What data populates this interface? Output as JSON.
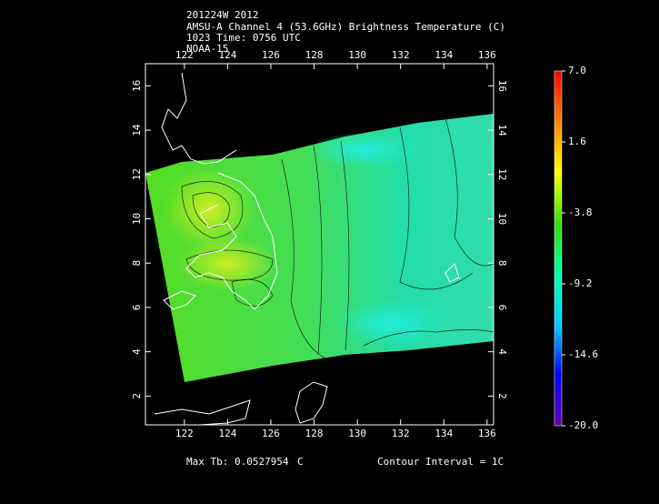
{
  "header": {
    "lines": [
      "201224W 2012",
      "AMSU-A Channel 4 (53.6GHz) Brightness Temperature (C)",
      "1023 Time: 0756 UTC",
      "NOAA-15"
    ]
  },
  "map": {
    "xlim": [
      120.2,
      136.3
    ],
    "ylim": [
      0.7,
      17.0
    ],
    "xticks": [
      122,
      124,
      126,
      128,
      130,
      132,
      134,
      136
    ],
    "yticks": [
      2,
      4,
      6,
      8,
      10,
      12,
      14,
      16
    ]
  },
  "colorbar": {
    "lim": [
      -20,
      7
    ],
    "colors": [
      "#ff0000",
      "#ff8000",
      "#ffff00",
      "#33dd00",
      "#00ffaa",
      "#00ccff",
      "#0000ff",
      "#6600aa"
    ],
    "ticks": [
      {
        "value": 7,
        "label": "7.0"
      },
      {
        "value": 1.6,
        "label": "1.6"
      },
      {
        "value": -3.8,
        "label": "-3.8"
      },
      {
        "value": -9.2,
        "label": "-9.2"
      },
      {
        "value": -14.6,
        "label": "-14.6"
      },
      {
        "value": -20,
        "label": "-20.0"
      }
    ]
  },
  "footer": {
    "max_label": "Max Tb:",
    "max_value": 0.0527954,
    "max_unit": "C",
    "contour": "Contour Interval = 1C"
  }
}
